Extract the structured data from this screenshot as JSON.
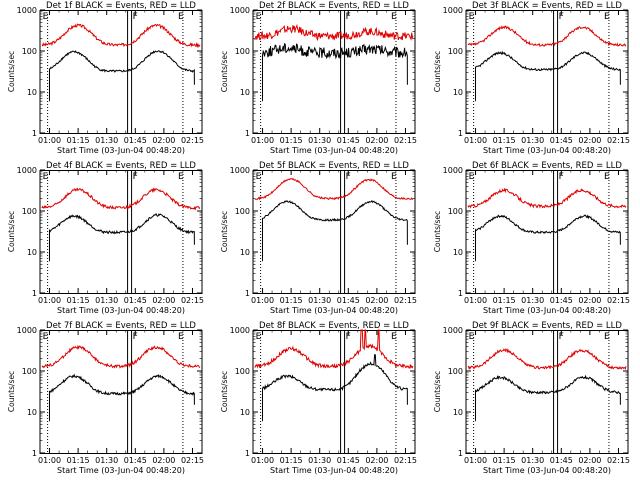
{
  "figure": {
    "caption": "Nine detector count-rate panels (log scale)"
  },
  "chart_data": [
    {
      "type": "line",
      "title": "Det 1f BLACK = Events, RED = LLD",
      "xlabel": "Start Time (03-Jun-04 00:48:20)",
      "ylabel": "Counts/sec",
      "xtick_labels": [
        "01:00",
        "01:15",
        "01:30",
        "01:45",
        "02:00",
        "02:15"
      ],
      "ytick_labels": [
        "1",
        "10",
        "100",
        "1000"
      ],
      "ylim": [
        1,
        1000
      ],
      "xlim_minutes": [
        55,
        140
      ],
      "markers": [
        {
          "label": "E",
          "t": 59
        },
        {
          "label": "F",
          "t": 102
        },
        {
          "label": "E",
          "t": 130
        }
      ],
      "series": [
        {
          "name": "LLD",
          "color": "#e00000",
          "base": 140,
          "peaks": [
            [
              75,
              420
            ],
            [
              116,
              420
            ]
          ],
          "noise": 0.08
        },
        {
          "name": "Events",
          "color": "#000000",
          "base": 32,
          "start": 60,
          "end": 136,
          "peaks": [
            [
              73,
              95
            ],
            [
              117,
              100
            ]
          ],
          "noise": 0.06
        }
      ]
    },
    {
      "type": "line",
      "title": "Det 2f BLACK = Events, RED = LLD",
      "xlabel": "Start Time (03-Jun-04 00:48:20)",
      "ylabel": "Counts/sec",
      "xtick_labels": [
        "01:00",
        "01:15",
        "01:30",
        "01:45",
        "02:00",
        "02:15"
      ],
      "ytick_labels": [
        "1",
        "10",
        "100",
        "1000"
      ],
      "ylim": [
        1,
        1000
      ],
      "xlim_minutes": [
        55,
        140
      ],
      "markers": [
        {
          "label": "E",
          "t": 59
        },
        {
          "label": "F",
          "t": 102
        },
        {
          "label": "E",
          "t": 130
        }
      ],
      "series": [
        {
          "name": "LLD",
          "color": "#e00000",
          "base": 230,
          "peaks": [
            [
              75,
              350
            ],
            [
              116,
              300
            ]
          ],
          "noise": 0.22
        },
        {
          "name": "Events",
          "color": "#000000",
          "base": 90,
          "start": 60,
          "end": 136,
          "peaks": [
            [
              73,
              120
            ],
            [
              117,
              110
            ]
          ],
          "noise": 0.3
        }
      ]
    },
    {
      "type": "line",
      "title": "Det 3f BLACK = Events, RED = LLD",
      "xlabel": "Start Time (03-Jun-04 00:48:20)",
      "ylabel": "Counts/sec",
      "xtick_labels": [
        "01:00",
        "01:15",
        "01:30",
        "01:45",
        "02:00",
        "02:15"
      ],
      "ytick_labels": [
        "1",
        "10",
        "100",
        "1000"
      ],
      "ylim": [
        1,
        1000
      ],
      "xlim_minutes": [
        55,
        140
      ],
      "markers": [
        {
          "label": "E",
          "t": 59
        },
        {
          "label": "F",
          "t": 102
        },
        {
          "label": "E",
          "t": 130
        }
      ],
      "series": [
        {
          "name": "LLD",
          "color": "#e00000",
          "base": 140,
          "peaks": [
            [
              75,
              380
            ],
            [
              116,
              380
            ]
          ],
          "noise": 0.07
        },
        {
          "name": "Events",
          "color": "#000000",
          "base": 35,
          "start": 60,
          "end": 136,
          "peaks": [
            [
              73,
              90
            ],
            [
              117,
              90
            ]
          ],
          "noise": 0.06
        }
      ]
    },
    {
      "type": "line",
      "title": "Det 4f BLACK = Events, RED = LLD",
      "xlabel": "Start Time (03-Jun-04 00:48:20)",
      "ylabel": "Counts/sec",
      "xtick_labels": [
        "01:00",
        "01:15",
        "01:30",
        "01:45",
        "02:00",
        "02:15"
      ],
      "ytick_labels": [
        "1",
        "10",
        "100",
        "1000"
      ],
      "ylim": [
        1,
        1000
      ],
      "xlim_minutes": [
        55,
        140
      ],
      "markers": [
        {
          "label": "E",
          "t": 59
        },
        {
          "label": "F",
          "t": 102
        },
        {
          "label": "E",
          "t": 130
        }
      ],
      "series": [
        {
          "name": "LLD",
          "color": "#e00000",
          "base": 120,
          "peaks": [
            [
              75,
              330
            ],
            [
              116,
              330
            ]
          ],
          "noise": 0.08
        },
        {
          "name": "Events",
          "color": "#000000",
          "base": 30,
          "start": 60,
          "end": 136,
          "peaks": [
            [
              73,
              75
            ],
            [
              117,
              80
            ]
          ],
          "noise": 0.07
        }
      ]
    },
    {
      "type": "line",
      "title": "Det 5f BLACK = Events, RED = LLD",
      "xlabel": "Start Time (03-Jun-04 00:48:20)",
      "ylabel": "Counts/sec",
      "xtick_labels": [
        "01:00",
        "01:15",
        "01:30",
        "01:45",
        "02:00",
        "02:15"
      ],
      "ytick_labels": [
        "1",
        "10",
        "100",
        "1000"
      ],
      "ylim": [
        1,
        1000
      ],
      "xlim_minutes": [
        55,
        140
      ],
      "markers": [
        {
          "label": "E",
          "t": 59
        },
        {
          "label": "F",
          "t": 102
        },
        {
          "label": "E",
          "t": 130
        }
      ],
      "series": [
        {
          "name": "LLD",
          "color": "#e00000",
          "base": 200,
          "peaks": [
            [
              75,
              600
            ],
            [
              116,
              580
            ]
          ],
          "noise": 0.05
        },
        {
          "name": "Events",
          "color": "#000000",
          "base": 60,
          "start": 60,
          "end": 136,
          "peaks": [
            [
              73,
              170
            ],
            [
              117,
              170
            ]
          ],
          "noise": 0.05
        }
      ]
    },
    {
      "type": "line",
      "title": "Det 6f BLACK = Events, RED = LLD",
      "xlabel": "Start Time (03-Jun-04 00:48:20)",
      "ylabel": "Counts/sec",
      "xtick_labels": [
        "01:00",
        "01:15",
        "01:30",
        "01:45",
        "02:00",
        "02:15"
      ],
      "ytick_labels": [
        "1",
        "10",
        "100",
        "1000"
      ],
      "ylim": [
        1,
        1000
      ],
      "xlim_minutes": [
        55,
        140
      ],
      "markers": [
        {
          "label": "E",
          "t": 59
        },
        {
          "label": "F",
          "t": 102
        },
        {
          "label": "E",
          "t": 130
        }
      ],
      "series": [
        {
          "name": "LLD",
          "color": "#e00000",
          "base": 130,
          "peaks": [
            [
              75,
              320
            ],
            [
              116,
              320
            ]
          ],
          "noise": 0.08
        },
        {
          "name": "Events",
          "color": "#000000",
          "base": 30,
          "start": 60,
          "end": 136,
          "peaks": [
            [
              73,
              75
            ],
            [
              117,
              75
            ]
          ],
          "noise": 0.06
        }
      ]
    },
    {
      "type": "line",
      "title": "Det 7f BLACK = Events, RED = LLD",
      "xlabel": "Start Time (03-Jun-04 00:48:20)",
      "ylabel": "Counts/sec",
      "xtick_labels": [
        "01:00",
        "01:15",
        "01:30",
        "01:45",
        "02:00",
        "02:15"
      ],
      "ytick_labels": [
        "1",
        "10",
        "100",
        "1000"
      ],
      "ylim": [
        1,
        1000
      ],
      "xlim_minutes": [
        55,
        140
      ],
      "markers": [
        {
          "label": "E",
          "t": 59
        },
        {
          "label": "F",
          "t": 102
        },
        {
          "label": "E",
          "t": 130
        }
      ],
      "series": [
        {
          "name": "LLD",
          "color": "#e00000",
          "base": 130,
          "peaks": [
            [
              75,
              380
            ],
            [
              116,
              380
            ]
          ],
          "noise": 0.08
        },
        {
          "name": "Events",
          "color": "#000000",
          "base": 28,
          "start": 60,
          "end": 136,
          "peaks": [
            [
              73,
              75
            ],
            [
              117,
              75
            ]
          ],
          "noise": 0.07
        }
      ]
    },
    {
      "type": "line",
      "title": "Det 8f BLACK = Events, RED = LLD",
      "xlabel": "Start Time (03-Jun-04 00:48:20)",
      "ylabel": "Counts/sec",
      "xtick_labels": [
        "01:00",
        "01:15",
        "01:30",
        "01:45",
        "02:00",
        "02:15"
      ],
      "ytick_labels": [
        "1",
        "10",
        "100",
        "1000"
      ],
      "ylim": [
        1,
        1000
      ],
      "xlim_minutes": [
        55,
        140
      ],
      "markers": [
        {
          "label": "E",
          "t": 59
        },
        {
          "label": "F",
          "t": 102
        },
        {
          "label": "E",
          "t": 130
        }
      ],
      "series": [
        {
          "name": "LLD",
          "color": "#e00000",
          "base": 130,
          "peaks": [
            [
              75,
              350
            ],
            [
              116,
              400
            ]
          ],
          "noise": 0.1,
          "spikes": [
            [
              112,
              1000
            ],
            [
              114,
              1000
            ],
            [
              121,
              1000
            ]
          ]
        },
        {
          "name": "Events",
          "color": "#000000",
          "base": 35,
          "start": 60,
          "end": 136,
          "peaks": [
            [
              73,
              75
            ],
            [
              117,
              150
            ]
          ],
          "noise": 0.08,
          "spikes": [
            [
              119,
              250
            ]
          ]
        }
      ]
    },
    {
      "type": "line",
      "title": "Det 9f BLACK = Events, RED = LLD",
      "xlabel": "Start Time (03-Jun-04 00:48:20)",
      "ylabel": "Counts/sec",
      "xtick_labels": [
        "01:00",
        "01:15",
        "01:30",
        "01:45",
        "02:00",
        "02:15"
      ],
      "ytick_labels": [
        "1",
        "10",
        "100",
        "1000"
      ],
      "ylim": [
        1,
        1000
      ],
      "xlim_minutes": [
        55,
        140
      ],
      "markers": [
        {
          "label": "E",
          "t": 59
        },
        {
          "label": "F",
          "t": 102
        },
        {
          "label": "E",
          "t": 130
        }
      ],
      "series": [
        {
          "name": "LLD",
          "color": "#e00000",
          "base": 120,
          "peaks": [
            [
              75,
              320
            ],
            [
              116,
              320
            ]
          ],
          "noise": 0.08
        },
        {
          "name": "Events",
          "color": "#000000",
          "base": 30,
          "start": 60,
          "end": 136,
          "peaks": [
            [
              73,
              70
            ],
            [
              117,
              70
            ]
          ],
          "noise": 0.07
        }
      ]
    }
  ]
}
